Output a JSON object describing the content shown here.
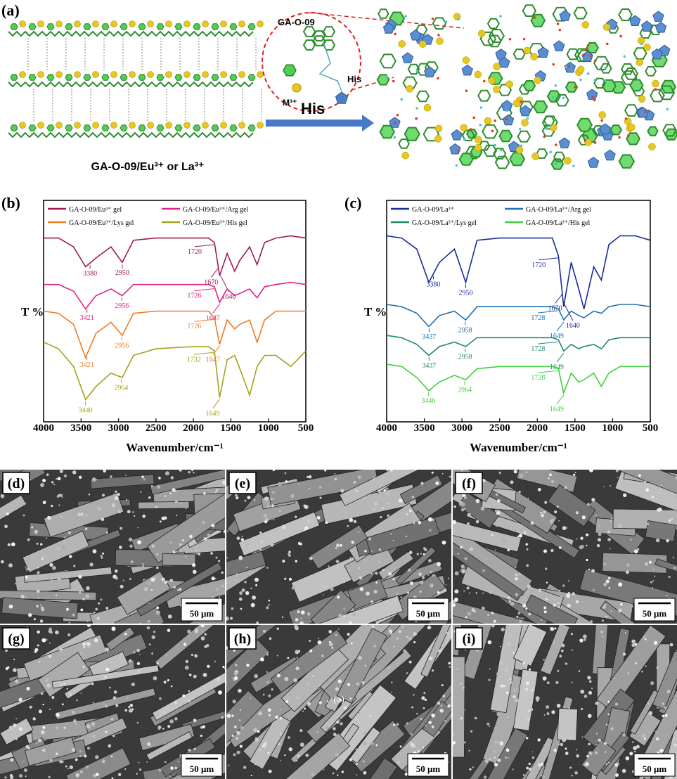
{
  "panel_a": {
    "label": "(a)",
    "inset_title": "GA-O-09",
    "inset_his": "His",
    "inset_metal": "M³⁺",
    "arrow_label": "His",
    "caption": "GA-O-09/Eu³⁺ or La³⁺"
  },
  "chart_data": [
    {
      "type": "line",
      "label": "(b)",
      "xlabel": "Wavenumber/cm⁻¹",
      "ylabel": "T %",
      "x": [
        4000,
        3800,
        3600,
        3440,
        3300,
        3100,
        2950,
        2800,
        2500,
        2000,
        1800,
        1720,
        1650,
        1550,
        1450,
        1380,
        1250,
        1150,
        1050,
        900,
        700,
        500
      ],
      "xlim": [
        4000,
        500
      ],
      "xticks": [
        4000,
        3500,
        3000,
        2500,
        2000,
        1500,
        1000,
        500
      ],
      "ylim": [
        0,
        100
      ],
      "series": [
        {
          "name": "GA-O-09/Eu³⁺ gel",
          "color": "#9e1a55",
          "values": [
            83,
            83,
            79,
            70,
            74,
            79,
            72,
            82,
            83,
            83,
            83,
            81,
            66,
            76,
            68,
            73,
            79,
            71,
            81,
            83,
            84,
            83
          ],
          "peaks": [
            3380,
            2950,
            1720,
            1670,
            1640
          ]
        },
        {
          "name": "GA-O-09/Eu³⁺/Arg gel",
          "color": "#e02288",
          "values": [
            62,
            62,
            59,
            51,
            57,
            60,
            57,
            62,
            62,
            62,
            62,
            61,
            54,
            60,
            57,
            58,
            60,
            56,
            61,
            62,
            63,
            62
          ],
          "peaks": [
            3421,
            2956,
            1726,
            1647
          ]
        },
        {
          "name": "GA-O-09/Eu³⁺/Lys gel",
          "color": "#f07a22",
          "values": [
            50,
            49,
            44,
            29,
            40,
            45,
            39,
            49,
            50,
            50,
            50,
            47,
            35,
            46,
            42,
            44,
            46,
            36,
            46,
            50,
            50,
            50
          ],
          "peaks": [
            3421,
            2956,
            1726,
            1647
          ]
        },
        {
          "name": "GA-O-09/Eu³⁺/His gel",
          "color": "#a3a21e",
          "values": [
            36,
            33,
            25,
            10,
            16,
            22,
            20,
            30,
            33,
            34,
            34,
            32,
            11,
            28,
            30,
            24,
            12,
            25,
            30,
            30,
            25,
            32
          ],
          "peaks": [
            3440,
            2964,
            1732,
            1649
          ]
        }
      ]
    },
    {
      "type": "line",
      "label": "(c)",
      "xlabel": "Wavenumber/cm⁻¹",
      "ylabel": "T %",
      "x": [
        4000,
        3800,
        3600,
        3440,
        3300,
        3100,
        2950,
        2800,
        2500,
        2000,
        1800,
        1720,
        1650,
        1550,
        1450,
        1380,
        1250,
        1150,
        1050,
        900,
        700,
        500
      ],
      "xlim": [
        4000,
        500
      ],
      "xticks": [
        4000,
        3500,
        3000,
        2500,
        2000,
        1500,
        1000,
        500
      ],
      "ylim": [
        0,
        100
      ],
      "series": [
        {
          "name": "GA-O-09/La³⁺",
          "color": "#1a2a9a",
          "values": [
            84,
            83,
            78,
            63,
            72,
            78,
            63,
            82,
            83,
            83,
            83,
            75,
            52,
            72,
            60,
            51,
            70,
            64,
            80,
            84,
            84,
            82
          ],
          "peaks": [
            3380,
            2950,
            1720,
            1670,
            1640
          ]
        },
        {
          "name": "GA-O-09/La³⁺/Arg gel",
          "color": "#2070b0",
          "values": [
            53,
            52,
            49,
            43,
            48,
            50,
            46,
            52,
            52,
            52,
            52,
            51,
            46,
            50,
            48,
            47,
            50,
            49,
            52,
            53,
            53,
            52
          ],
          "peaks": [
            3437,
            2958,
            1728,
            1649
          ]
        },
        {
          "name": "GA-O-09/La³⁺/Lys gel",
          "color": "#1a8a6a",
          "values": [
            39,
            38,
            35,
            30,
            34,
            36,
            34,
            38,
            38,
            38,
            38,
            37,
            32,
            35,
            33,
            34,
            35,
            33,
            37,
            38,
            38,
            38
          ],
          "peaks": [
            3437,
            2958,
            1728,
            1649
          ]
        },
        {
          "name": "GA-O-09/La³⁺/His gel",
          "color": "#40d040",
          "values": [
            26,
            25,
            20,
            14,
            18,
            21,
            19,
            24,
            25,
            25,
            25,
            24,
            13,
            22,
            18,
            19,
            22,
            16,
            22,
            25,
            25,
            25
          ],
          "peaks": [
            3446,
            2964,
            1728,
            1649
          ]
        }
      ]
    }
  ],
  "sem": [
    {
      "label": "(d)",
      "scale": "50 μm"
    },
    {
      "label": "(e)",
      "scale": "50 μm"
    },
    {
      "label": "(f)",
      "scale": "50 μm"
    },
    {
      "label": "(g)",
      "scale": "50 μm"
    },
    {
      "label": "(h)",
      "scale": "50 μm",
      "inset_text": "(a)"
    },
    {
      "label": "(i)",
      "scale": "50 μm"
    }
  ]
}
